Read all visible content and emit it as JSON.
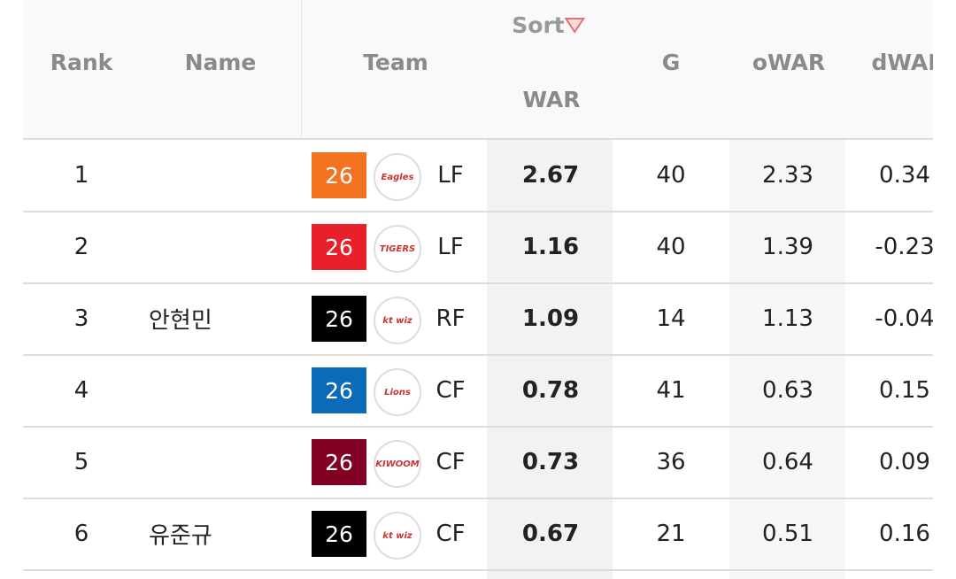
{
  "header": {
    "sort": "Sort",
    "columns": [
      "Rank",
      "Name",
      "Team",
      "WAR",
      "G",
      "oWAR",
      "dWAR"
    ]
  },
  "rows": [
    {
      "rank": "1",
      "name": null,
      "team_number": "26",
      "team_logo": "Eagles",
      "position": "LF",
      "war": "2.67",
      "g": "40",
      "owar": "2.33",
      "dwar": "0.34"
    },
    {
      "rank": "2",
      "name": null,
      "team_number": "26",
      "team_logo": "TIGERS",
      "position": "LF",
      "war": "1.16",
      "g": "40",
      "owar": "1.39",
      "dwar": "-0.23"
    },
    {
      "rank": "3",
      "name": "안현민",
      "team_number": "26",
      "team_logo": "kt wiz",
      "position": "RF",
      "war": "1.09",
      "g": "14",
      "owar": "1.13",
      "dwar": "-0.04"
    },
    {
      "rank": "4",
      "name": null,
      "team_number": "26",
      "team_logo": "Lions",
      "position": "CF",
      "war": "0.78",
      "g": "41",
      "owar": "0.63",
      "dwar": "0.15"
    },
    {
      "rank": "5",
      "name": null,
      "team_number": "26",
      "team_logo": "KIWOOM",
      "position": "CF",
      "war": "0.73",
      "g": "36",
      "owar": "0.64",
      "dwar": "0.09"
    },
    {
      "rank": "6",
      "name": "유준규",
      "team_number": "26",
      "team_logo": "kt wiz",
      "position": "CF",
      "war": "0.67",
      "g": "21",
      "owar": "0.51",
      "dwar": "0.16"
    }
  ]
}
